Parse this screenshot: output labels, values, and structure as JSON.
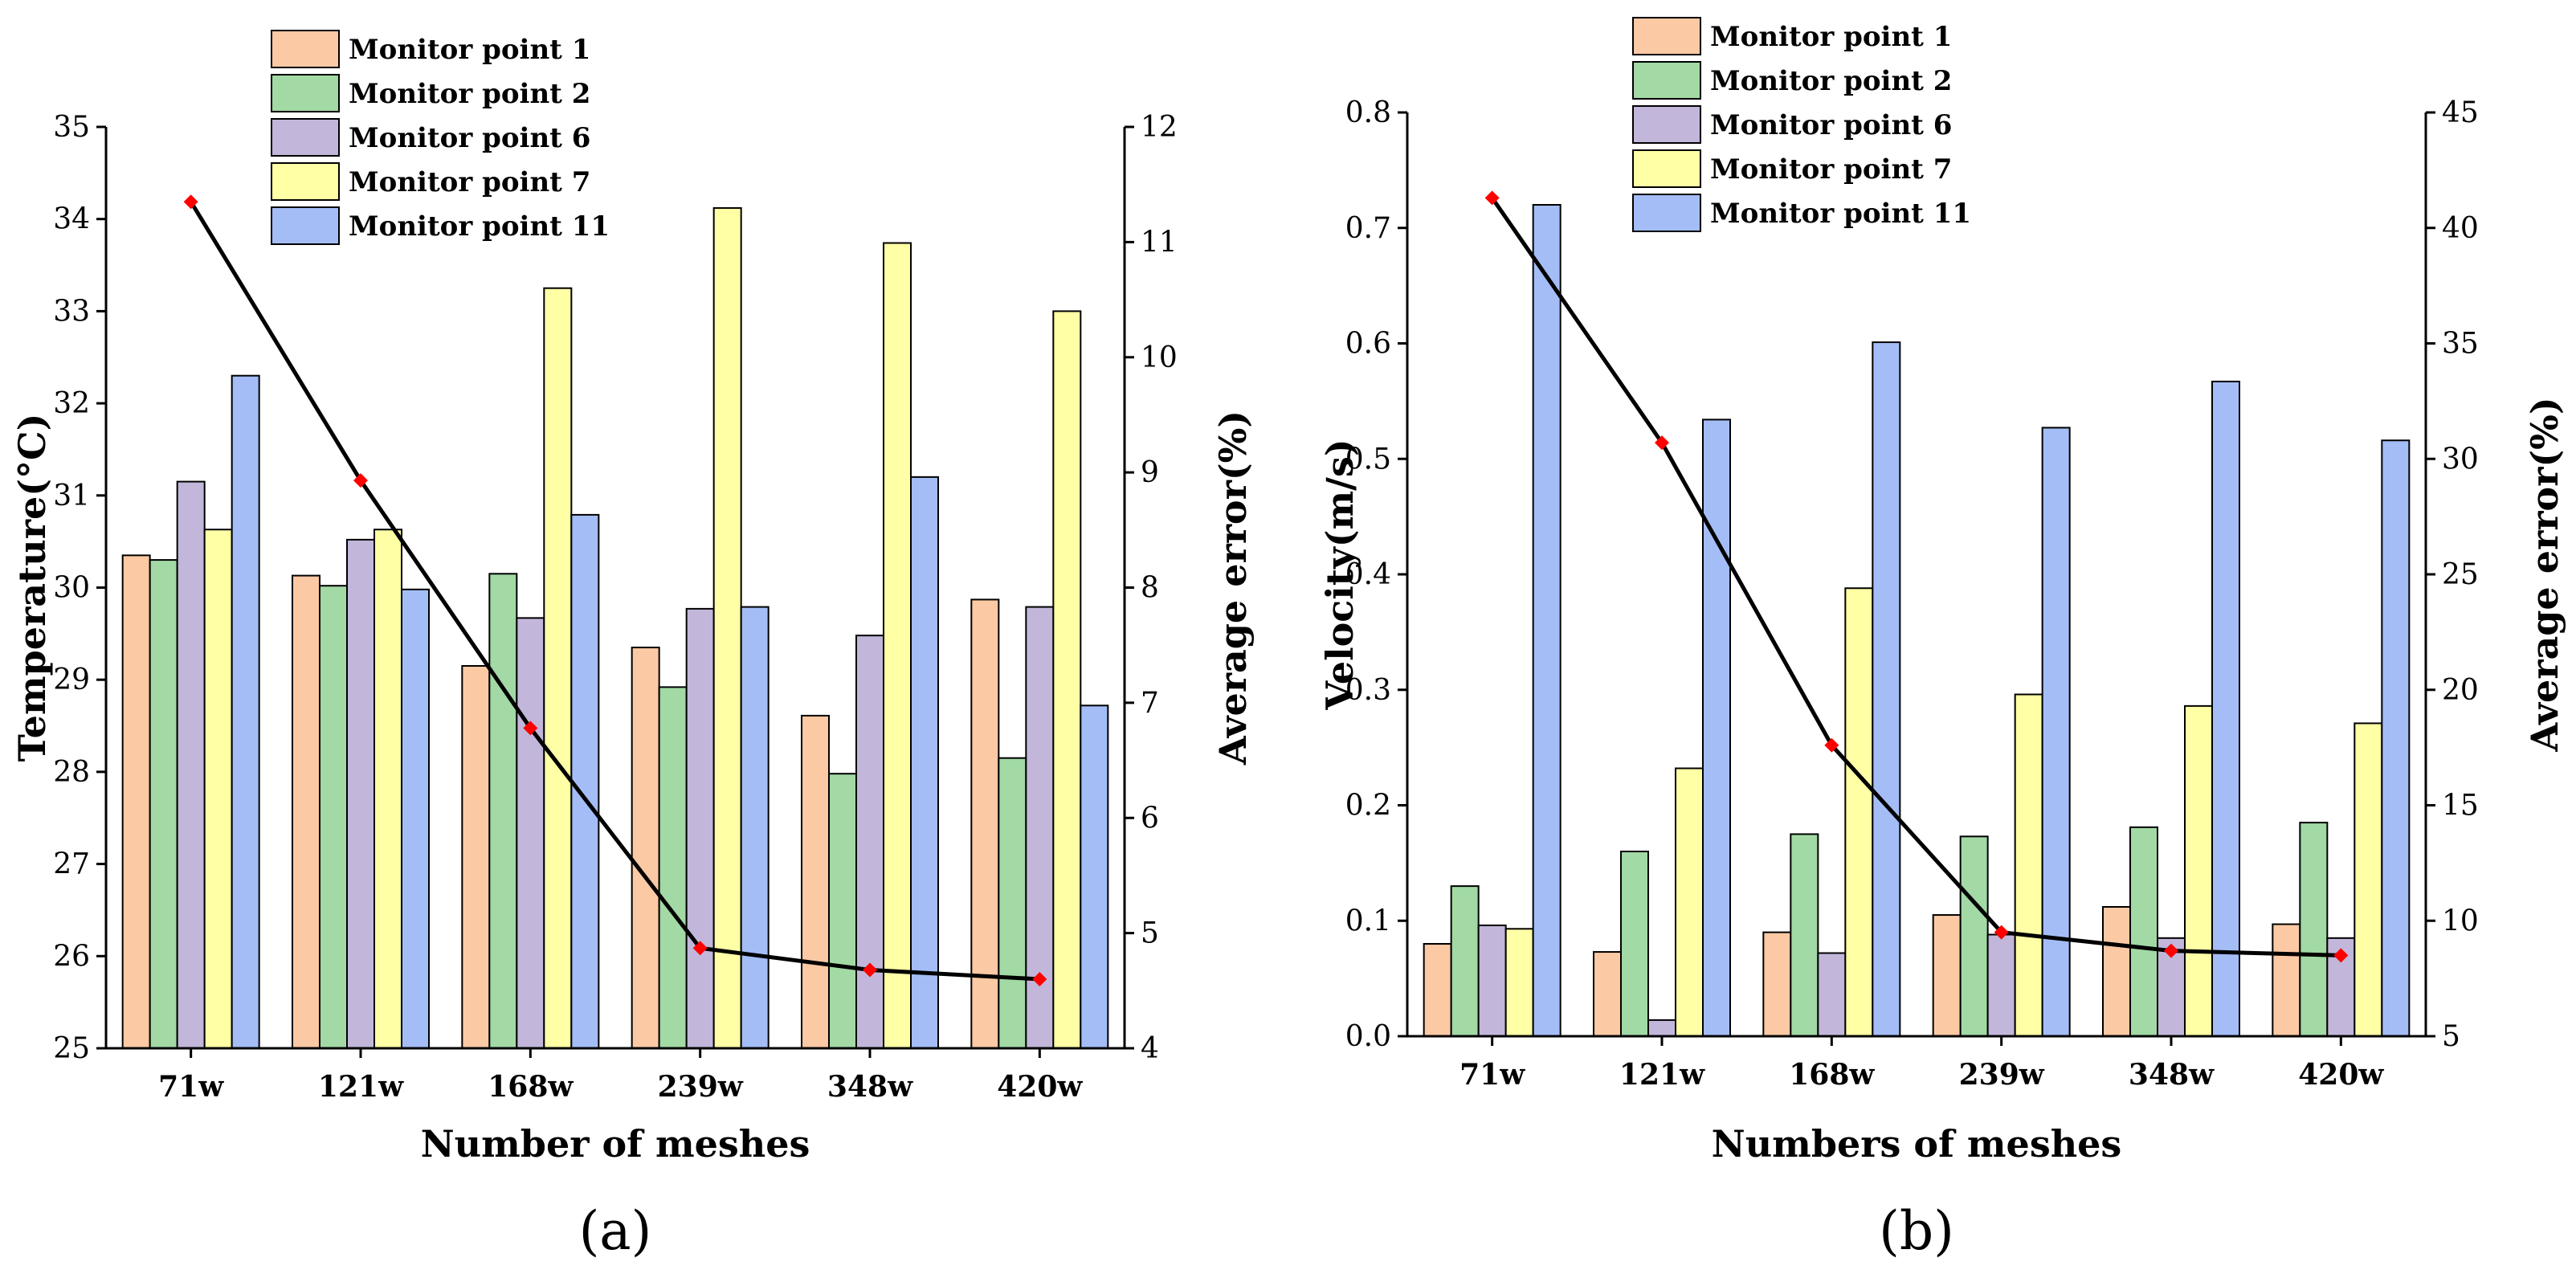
{
  "colors": {
    "series": [
      "#FBC9A4",
      "#A2D9A5",
      "#C2B7DA",
      "#FFFFA6",
      "#A4BDF7"
    ],
    "line": "#000000",
    "marker": "#FF0000"
  },
  "chart_data": [
    {
      "type": "bar",
      "panel_label": "(a)",
      "title": "",
      "xlabel": "Number of meshes",
      "ylabel": "Temperature(°C)",
      "y2label": "Average error(%)",
      "categories": [
        "71w",
        "121w",
        "168w",
        "239w",
        "348w",
        "420w"
      ],
      "ylim": [
        25,
        35
      ],
      "yticks": [
        "25",
        "26",
        "27",
        "28",
        "29",
        "30",
        "31",
        "32",
        "33",
        "34",
        "35"
      ],
      "y2lim": [
        4,
        12
      ],
      "y2ticks": [
        "4",
        "5",
        "6",
        "7",
        "8",
        "9",
        "10",
        "11",
        "12"
      ],
      "legend_position": "top-left",
      "series": [
        {
          "name": "Monitor point 1",
          "values": [
            30.35,
            30.13,
            29.15,
            29.35,
            28.61,
            29.87
          ]
        },
        {
          "name": "Monitor point 2",
          "values": [
            30.3,
            30.02,
            30.15,
            28.92,
            27.98,
            28.15
          ]
        },
        {
          "name": "Monitor point 6",
          "values": [
            31.15,
            30.52,
            29.67,
            29.77,
            29.48,
            29.79
          ]
        },
        {
          "name": "Monitor point 7",
          "values": [
            30.63,
            30.63,
            33.25,
            34.12,
            33.74,
            33.0
          ]
        },
        {
          "name": "Monitor point 11",
          "values": [
            32.3,
            29.98,
            30.79,
            29.79,
            31.2,
            28.72
          ]
        }
      ],
      "line_series": {
        "name": "Average error",
        "axis": "right",
        "values": [
          11.35,
          8.93,
          6.78,
          4.87,
          4.68,
          4.6
        ]
      }
    },
    {
      "type": "bar",
      "panel_label": "(b)",
      "title": "",
      "xlabel": "Numbers of meshes",
      "ylabel": "Velocity(m/s)",
      "y2label": "Average error(%)",
      "categories": [
        "71w",
        "121w",
        "168w",
        "239w",
        "348w",
        "420w"
      ],
      "ylim": [
        0,
        0.8
      ],
      "yticks": [
        "0.0",
        "0.1",
        "0.2",
        "0.3",
        "0.4",
        "0.5",
        "0.6",
        "0.7",
        "0.8"
      ],
      "y2lim": [
        5,
        45
      ],
      "y2ticks": [
        "5",
        "10",
        "15",
        "20",
        "25",
        "30",
        "35",
        "40",
        "45"
      ],
      "legend_position": "top-left",
      "series": [
        {
          "name": "Monitor point 1",
          "values": [
            0.08,
            0.073,
            0.09,
            0.105,
            0.112,
            0.097
          ]
        },
        {
          "name": "Monitor point 2",
          "values": [
            0.13,
            0.16,
            0.175,
            0.173,
            0.181,
            0.185
          ]
        },
        {
          "name": "Monitor point 6",
          "values": [
            0.096,
            0.014,
            0.072,
            0.088,
            0.085,
            0.085
          ]
        },
        {
          "name": "Monitor point 7",
          "values": [
            0.093,
            0.232,
            0.388,
            0.296,
            0.286,
            0.271
          ]
        },
        {
          "name": "Monitor point 11",
          "values": [
            0.72,
            0.534,
            0.601,
            0.527,
            0.567,
            0.516
          ]
        }
      ],
      "line_series": {
        "name": "Average error",
        "axis": "right",
        "values": [
          41.3,
          30.7,
          17.6,
          9.5,
          8.7,
          8.5
        ]
      }
    }
  ]
}
